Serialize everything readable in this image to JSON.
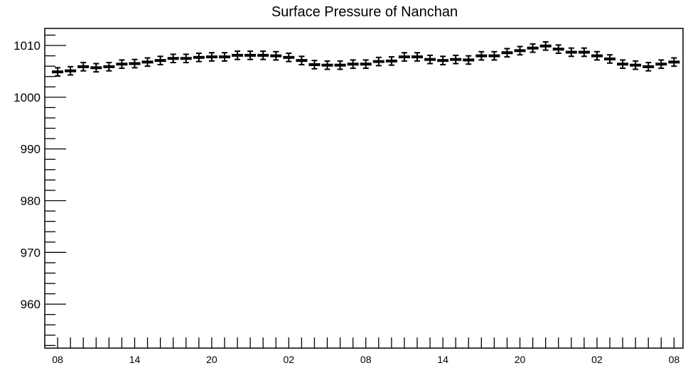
{
  "chart_data": {
    "type": "scatter",
    "title": "Surface Pressure of Nanchan",
    "xlabel": "",
    "ylabel": "",
    "ylim": [
      951.5,
      1013.3
    ],
    "y_ticks": [
      960,
      970,
      980,
      990,
      1000,
      1010
    ],
    "x_tick_labels": [
      "08",
      "14",
      "20",
      "02",
      "08",
      "14",
      "20",
      "02",
      "08"
    ],
    "x_tick_label_indices": [
      0,
      6,
      12,
      18,
      24,
      30,
      36,
      42,
      48
    ],
    "x_range": [
      -1,
      48.7
    ],
    "grid": false,
    "legend": "none",
    "marker_color": "#000000",
    "series": [
      {
        "values": [
          1004.9,
          1005.1,
          1005.9,
          1005.7,
          1005.9,
          1006.4,
          1006.5,
          1006.8,
          1007.1,
          1007.5,
          1007.5,
          1007.7,
          1007.8,
          1007.8,
          1008.1,
          1008.1,
          1008.1,
          1008.0,
          1007.7,
          1007.1,
          1006.3,
          1006.2,
          1006.2,
          1006.4,
          1006.4,
          1006.9,
          1007.0,
          1007.8,
          1007.8,
          1007.3,
          1007.1,
          1007.3,
          1007.2,
          1008.0,
          1008.0,
          1008.6,
          1009.0,
          1009.5,
          1009.9,
          1009.3,
          1008.7,
          1008.7,
          1008.0,
          1007.4,
          1006.4,
          1006.2,
          1005.9,
          1006.4,
          1006.8
        ],
        "error": [
          0.8,
          0.8,
          0.8,
          0.8,
          0.8,
          0.8,
          0.8,
          0.8,
          0.8,
          0.8,
          0.8,
          0.8,
          0.8,
          0.8,
          0.8,
          0.8,
          0.8,
          0.8,
          0.8,
          0.8,
          0.8,
          0.8,
          0.8,
          0.8,
          0.8,
          0.8,
          0.8,
          0.8,
          0.8,
          0.8,
          0.8,
          0.8,
          0.8,
          0.8,
          0.8,
          0.8,
          0.8,
          0.8,
          0.8,
          0.8,
          0.8,
          0.8,
          0.8,
          0.8,
          0.8,
          0.8,
          0.8,
          0.8,
          0.8
        ]
      }
    ]
  }
}
